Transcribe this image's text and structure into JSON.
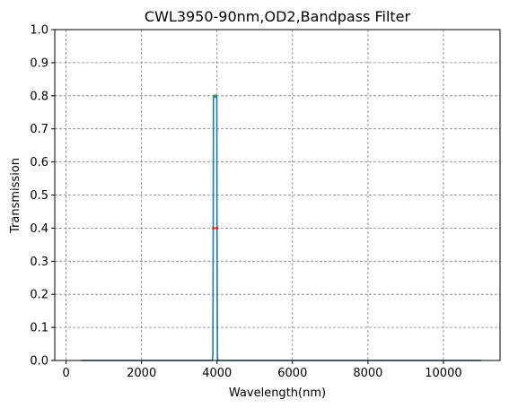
{
  "chart_data": {
    "type": "line",
    "title": "CWL3950-90nm,OD2,Bandpass Filter",
    "xlabel": "Wavelength(nm)",
    "ylabel": "Transmission",
    "xlim": [
      -300,
      11500
    ],
    "ylim": [
      0,
      1.0
    ],
    "xticks": [
      0,
      2000,
      4000,
      6000,
      8000,
      10000
    ],
    "yticks": [
      0.0,
      0.1,
      0.2,
      0.3,
      0.4,
      0.5,
      0.6,
      0.7,
      0.8,
      0.9,
      1.0
    ],
    "xtick_labels": [
      "0",
      "2000",
      "4000",
      "6000",
      "8000",
      "10000"
    ],
    "ytick_labels": [
      "0.0",
      "0.1",
      "0.2",
      "0.3",
      "0.4",
      "0.5",
      "0.6",
      "0.7",
      "0.8",
      "0.9",
      "1.0"
    ],
    "grid": true,
    "series": [
      {
        "color": "#1f77b4",
        "x": [
          400,
          3880,
          3890,
          3900,
          3905,
          3910,
          3920,
          3950,
          3980,
          3990,
          3995,
          4000,
          4010,
          4020,
          11000
        ],
        "y": [
          0.0,
          0.0,
          0.02,
          0.4,
          0.79,
          0.8,
          0.795,
          0.8,
          0.795,
          0.8,
          0.79,
          0.4,
          0.02,
          0.0,
          0.0
        ]
      }
    ],
    "markers": [
      {
        "x": 3905,
        "y": 0.4,
        "color": "#d62728"
      },
      {
        "x": 3995,
        "y": 0.4,
        "color": "#d62728"
      },
      {
        "x": 3950,
        "y": 0.8,
        "color": "#2ca02c"
      }
    ]
  }
}
